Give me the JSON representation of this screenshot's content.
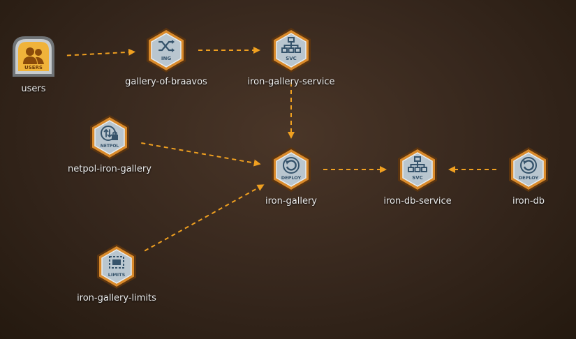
{
  "colors": {
    "edge": "#f0a020",
    "hex_outer": "#d98a2b",
    "hex_inner": "#b9c6cf",
    "icon": "#35536b",
    "users_fill": "#f0b33a",
    "users_frame": "#9ea2a5"
  },
  "nodes": [
    {
      "id": "users",
      "label": "users",
      "kind": "users",
      "badge": "USERS",
      "icon": "users-icon"
    },
    {
      "id": "ing",
      "label": "gallery-of-braavos",
      "kind": "hex",
      "badge": "ING",
      "icon": "shuffle-icon"
    },
    {
      "id": "svc1",
      "label": "iron-gallery-service",
      "kind": "hex",
      "badge": "SVC",
      "icon": "network-tree-icon"
    },
    {
      "id": "netpol",
      "label": "netpol-iron-gallery",
      "kind": "hex",
      "badge": "NETPOL",
      "icon": "netpol-lock-icon"
    },
    {
      "id": "deploy1",
      "label": "iron-gallery",
      "kind": "hex",
      "badge": "DEPLOY",
      "icon": "deploy-refresh-icon"
    },
    {
      "id": "svc2",
      "label": "iron-db-service",
      "kind": "hex",
      "badge": "SVC",
      "icon": "network-tree-icon"
    },
    {
      "id": "deploy2",
      "label": "iron-db",
      "kind": "hex",
      "badge": "DEPLOY",
      "icon": "deploy-refresh-icon"
    },
    {
      "id": "limits",
      "label": "iron-gallery-limits",
      "kind": "hex",
      "badge": "LIMITS",
      "icon": "limits-chip-icon"
    }
  ],
  "edges": [
    {
      "from": "users",
      "to": "ing"
    },
    {
      "from": "ing",
      "to": "svc1"
    },
    {
      "from": "svc1",
      "to": "deploy1"
    },
    {
      "from": "netpol",
      "to": "deploy1"
    },
    {
      "from": "limits",
      "to": "deploy1"
    },
    {
      "from": "deploy1",
      "to": "svc2"
    },
    {
      "from": "deploy2",
      "to": "svc2"
    }
  ]
}
